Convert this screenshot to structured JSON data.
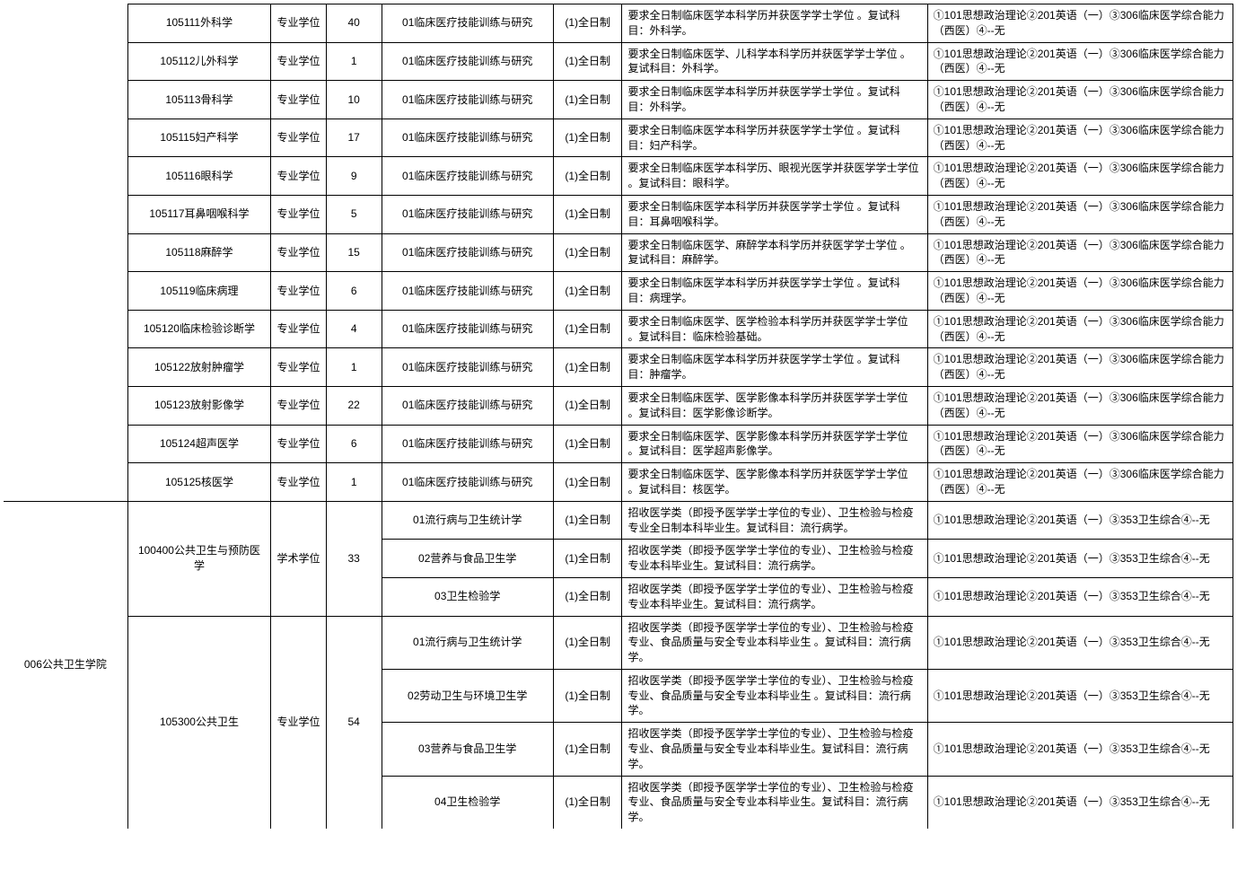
{
  "table": {
    "columns": {
      "widths": [
        130,
        150,
        58,
        58,
        180,
        72,
        320,
        320
      ],
      "alignments": [
        "center",
        "center",
        "center",
        "center",
        "center",
        "center",
        "left",
        "left"
      ]
    },
    "border_color": "#000000",
    "background_color": "#ffffff",
    "font_size": 12,
    "rows": [
      {
        "dept": "",
        "major": "105111外科学",
        "degree": "专业学位",
        "quota": "40",
        "direction": "01临床医疗技能训练与研究",
        "mode": "(1)全日制",
        "requirement": "要求全日制临床医学本科学历并获医学学士学位 。复试科目：外科学。",
        "exam": "①101思想政治理论②201英语（一）③306临床医学综合能力（西医）④--无"
      },
      {
        "dept": "",
        "major": "105112儿外科学",
        "degree": "专业学位",
        "quota": "1",
        "direction": "01临床医疗技能训练与研究",
        "mode": "(1)全日制",
        "requirement": "要求全日制临床医学、儿科学本科学历并获医学学士学位 。复试科目：外科学。",
        "exam": "①101思想政治理论②201英语（一）③306临床医学综合能力（西医）④--无"
      },
      {
        "dept": "",
        "major": "105113骨科学",
        "degree": "专业学位",
        "quota": "10",
        "direction": "01临床医疗技能训练与研究",
        "mode": "(1)全日制",
        "requirement": "要求全日制临床医学本科学历并获医学学士学位 。复试科目：外科学。",
        "exam": "①101思想政治理论②201英语（一）③306临床医学综合能力（西医）④--无"
      },
      {
        "dept": "",
        "major": "105115妇产科学",
        "degree": "专业学位",
        "quota": "17",
        "direction": "01临床医疗技能训练与研究",
        "mode": "(1)全日制",
        "requirement": "要求全日制临床医学本科学历并获医学学士学位 。复试科目：妇产科学。",
        "exam": "①101思想政治理论②201英语（一）③306临床医学综合能力（西医）④--无"
      },
      {
        "dept": "",
        "major": "105116眼科学",
        "degree": "专业学位",
        "quota": "9",
        "direction": "01临床医疗技能训练与研究",
        "mode": "(1)全日制",
        "requirement": "要求全日制临床医学本科学历、眼视光医学并获医学学士学位 。复试科目：眼科学。",
        "exam": "①101思想政治理论②201英语（一）③306临床医学综合能力（西医）④--无"
      },
      {
        "dept": "",
        "major": "105117耳鼻咽喉科学",
        "degree": "专业学位",
        "quota": "5",
        "direction": "01临床医疗技能训练与研究",
        "mode": "(1)全日制",
        "requirement": "要求全日制临床医学本科学历并获医学学士学位 。复试科目：耳鼻咽喉科学。",
        "exam": "①101思想政治理论②201英语（一）③306临床医学综合能力（西医）④--无"
      },
      {
        "dept": "",
        "major": "105118麻醉学",
        "degree": "专业学位",
        "quota": "15",
        "direction": "01临床医疗技能训练与研究",
        "mode": "(1)全日制",
        "requirement": "要求全日制临床医学、麻醉学本科学历并获医学学士学位 。复试科目：麻醉学。",
        "exam": "①101思想政治理论②201英语（一）③306临床医学综合能力（西医）④--无"
      },
      {
        "dept": "",
        "major": "105119临床病理",
        "degree": "专业学位",
        "quota": "6",
        "direction": "01临床医疗技能训练与研究",
        "mode": "(1)全日制",
        "requirement": "要求全日制临床医学本科学历并获医学学士学位 。复试科目：病理学。",
        "exam": "①101思想政治理论②201英语（一）③306临床医学综合能力（西医）④--无"
      },
      {
        "dept": "",
        "major": "105120临床检验诊断学",
        "degree": "专业学位",
        "quota": "4",
        "direction": "01临床医疗技能训练与研究",
        "mode": "(1)全日制",
        "requirement": "要求全日制临床医学、医学检验本科学历并获医学学士学位 。复试科目：临床检验基础。",
        "exam": "①101思想政治理论②201英语（一）③306临床医学综合能力（西医）④--无"
      },
      {
        "dept": "",
        "major": "105122放射肿瘤学",
        "degree": "专业学位",
        "quota": "1",
        "direction": "01临床医疗技能训练与研究",
        "mode": "(1)全日制",
        "requirement": "要求全日制临床医学本科学历并获医学学士学位 。复试科目：肿瘤学。",
        "exam": "①101思想政治理论②201英语（一）③306临床医学综合能力（西医）④--无"
      },
      {
        "dept": "",
        "major": "105123放射影像学",
        "degree": "专业学位",
        "quota": "22",
        "direction": "01临床医疗技能训练与研究",
        "mode": "(1)全日制",
        "requirement": "要求全日制临床医学、医学影像本科学历并获医学学士学位 。复试科目：医学影像诊断学。",
        "exam": "①101思想政治理论②201英语（一）③306临床医学综合能力（西医）④--无"
      },
      {
        "dept": "",
        "major": "105124超声医学",
        "degree": "专业学位",
        "quota": "6",
        "direction": "01临床医疗技能训练与研究",
        "mode": "(1)全日制",
        "requirement": "要求全日制临床医学、医学影像本科学历并获医学学士学位 。复试科目：医学超声影像学。",
        "exam": "①101思想政治理论②201英语（一）③306临床医学综合能力（西医）④--无"
      },
      {
        "dept": "",
        "major": "105125核医学",
        "degree": "专业学位",
        "quota": "1",
        "direction": "01临床医疗技能训练与研究",
        "mode": "(1)全日制",
        "requirement": "要求全日制临床医学、医学影像本科学历并获医学学士学位 。复试科目：核医学。",
        "exam": "①101思想政治理论②201英语（一）③306临床医学综合能力（西医）④--无"
      }
    ],
    "section2": {
      "dept": "006公共卫生学院",
      "group1": {
        "major": "100400公共卫生与预防医学",
        "degree": "学术学位",
        "quota": "33",
        "rows": [
          {
            "direction": "01流行病与卫生统计学",
            "mode": "(1)全日制",
            "requirement": "招收医学类（即授予医学学士学位的专业）、卫生检验与检疫专业全日制本科毕业生。复试科目：流行病学。",
            "exam": "①101思想政治理论②201英语（一）③353卫生综合④--无"
          },
          {
            "direction": "02营养与食品卫生学",
            "mode": "(1)全日制",
            "requirement": "招收医学类（即授予医学学士学位的专业）、卫生检验与检疫专业本科毕业生。复试科目：流行病学。",
            "exam": "①101思想政治理论②201英语（一）③353卫生综合④--无"
          },
          {
            "direction": "03卫生检验学",
            "mode": "(1)全日制",
            "requirement": "招收医学类（即授予医学学士学位的专业）、卫生检验与检疫专业本科毕业生。复试科目：流行病学。",
            "exam": "①101思想政治理论②201英语（一）③353卫生综合④--无"
          }
        ]
      },
      "group2": {
        "major": "105300公共卫生",
        "degree": "专业学位",
        "quota": "54",
        "rows": [
          {
            "direction": "01流行病与卫生统计学",
            "mode": "(1)全日制",
            "requirement": "招收医学类（即授予医学学士学位的专业）、卫生检验与检疫专业、食品质量与安全专业本科毕业生 。复试科目：流行病学。",
            "exam": "①101思想政治理论②201英语（一）③353卫生综合④--无"
          },
          {
            "direction": "02劳动卫生与环境卫生学",
            "mode": "(1)全日制",
            "requirement": "招收医学类（即授予医学学士学位的专业）、卫生检验与检疫专业、食品质量与安全专业本科毕业生 。复试科目：流行病学。",
            "exam": "①101思想政治理论②201英语（一）③353卫生综合④--无"
          },
          {
            "direction": "03营养与食品卫生学",
            "mode": "(1)全日制",
            "requirement": "招收医学类（即授予医学学士学位的专业）、卫生检验与检疫专业、食品质量与安全专业本科毕业生。复试科目：流行病学。",
            "exam": "①101思想政治理论②201英语（一）③353卫生综合④--无"
          },
          {
            "direction": "04卫生检验学",
            "mode": "(1)全日制",
            "requirement": "招收医学类（即授予医学学士学位的专业）、卫生检验与检疫专业、食品质量与安全专业本科毕业生。复试科目：流行病学。",
            "exam": "①101思想政治理论②201英语（一）③353卫生综合④--无"
          }
        ]
      }
    }
  }
}
